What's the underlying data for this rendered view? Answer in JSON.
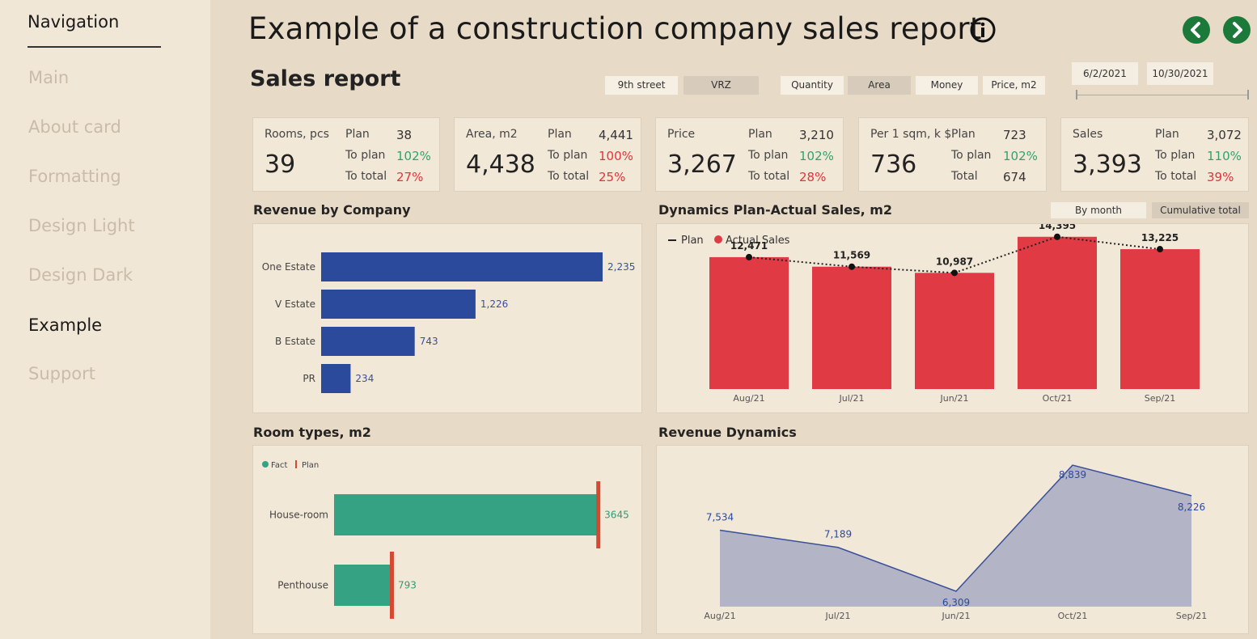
{
  "nav": {
    "title": "Navigation",
    "items": [
      "Main",
      "About card",
      "Formatting",
      "Design Light",
      "Design Dark",
      "Example",
      "Support"
    ],
    "active": "Example"
  },
  "header": {
    "title": "Example of a construction company sales report",
    "subtitle": "Sales report"
  },
  "slicers": {
    "street": [
      "9th street",
      "VRZ"
    ],
    "metric": [
      "Quantity",
      "Area",
      "Money",
      "Price, m2"
    ],
    "date_from": "6/2/2021",
    "date_to": "10/30/2021"
  },
  "kpis": [
    {
      "label": "Rooms, pcs",
      "value": "39",
      "r1_label": "Plan",
      "r1_value": "38",
      "r2_label": "To plan",
      "r2_value": "102%",
      "r3_label": "To total",
      "r3_value": "27%"
    },
    {
      "label": "Area, m2",
      "value": "4,438",
      "r1_label": "Plan",
      "r1_value": "4,441",
      "r2_label": "To plan",
      "r2_value": "100%",
      "r3_label": "To total",
      "r3_value": "25%"
    },
    {
      "label": "Price",
      "value": "3,267",
      "r1_label": "Plan",
      "r1_value": "3,210",
      "r2_label": "To plan",
      "r2_value": "102%",
      "r3_label": "To total",
      "r3_value": "28%"
    },
    {
      "label": "Per 1 sqm, k $",
      "value": "736",
      "r1_label": "Plan",
      "r1_value": "723",
      "r2_label": "To plan",
      "r2_value": "102%",
      "r3_label": "Total",
      "r3_value": "674"
    },
    {
      "label": "Sales",
      "value": "3,393",
      "r1_label": "Plan",
      "r1_value": "3,072",
      "r2_label": "To plan",
      "r2_value": "110%",
      "r3_label": "To total",
      "r3_value": "39%"
    }
  ],
  "panels": {
    "revenue_by_company": "Revenue by Company",
    "dynamics": "Dynamics Plan-Actual Sales, m2",
    "room_types": "Room types, m2",
    "revenue_dynamics": "Revenue Dynamics",
    "toggle_month": "By month",
    "toggle_cumulative": "Cumulative total"
  },
  "chart_data": [
    {
      "type": "bar",
      "orientation": "horizontal",
      "title": "Revenue by Company",
      "categories": [
        "One Estate",
        "V Estate",
        "B Estate",
        "PR"
      ],
      "values": [
        2235,
        1226,
        743,
        234
      ],
      "labels": [
        "2,235",
        "1,226",
        "743",
        "234"
      ],
      "color": "#2b4a9b"
    },
    {
      "type": "bar",
      "title": "Dynamics Plan-Actual Sales, m2",
      "legend": [
        "Plan",
        "Actual Sales"
      ],
      "categories": [
        "Aug/21",
        "Jul/21",
        "Jun/21",
        "Oct/21",
        "Sep/21"
      ],
      "series": [
        {
          "name": "Actual Sales",
          "values": [
            12471,
            11569,
            10987,
            14395,
            13225
          ]
        },
        {
          "name": "Plan",
          "values": [
            12471,
            11569,
            10987,
            14395,
            13225
          ]
        }
      ],
      "labels": [
        "12,471",
        "11,569",
        "10,987",
        "14,395",
        "13,225"
      ],
      "ylim": [
        0,
        15600
      ],
      "color": "#e03a45"
    },
    {
      "type": "bar",
      "orientation": "horizontal",
      "title": "Room types, m2",
      "legend": [
        "Fact",
        "Plan"
      ],
      "categories": [
        "House-room",
        "Penthouse"
      ],
      "values": [
        3645,
        793
      ],
      "labels": [
        "3645",
        "793"
      ],
      "xlim": [
        0,
        3900
      ],
      "color": "#34a283"
    },
    {
      "type": "area",
      "title": "Revenue Dynamics",
      "categories": [
        "Aug/21",
        "Jul/21",
        "Jun/21",
        "Oct/21",
        "Sep/21"
      ],
      "values": [
        7534,
        7189,
        6309,
        8839,
        8226
      ],
      "labels": [
        "7,534",
        "7,189",
        "6,309",
        "8,839",
        "8,226"
      ],
      "ylim": [
        6000,
        9100
      ],
      "color": "#b3b5c6"
    }
  ]
}
